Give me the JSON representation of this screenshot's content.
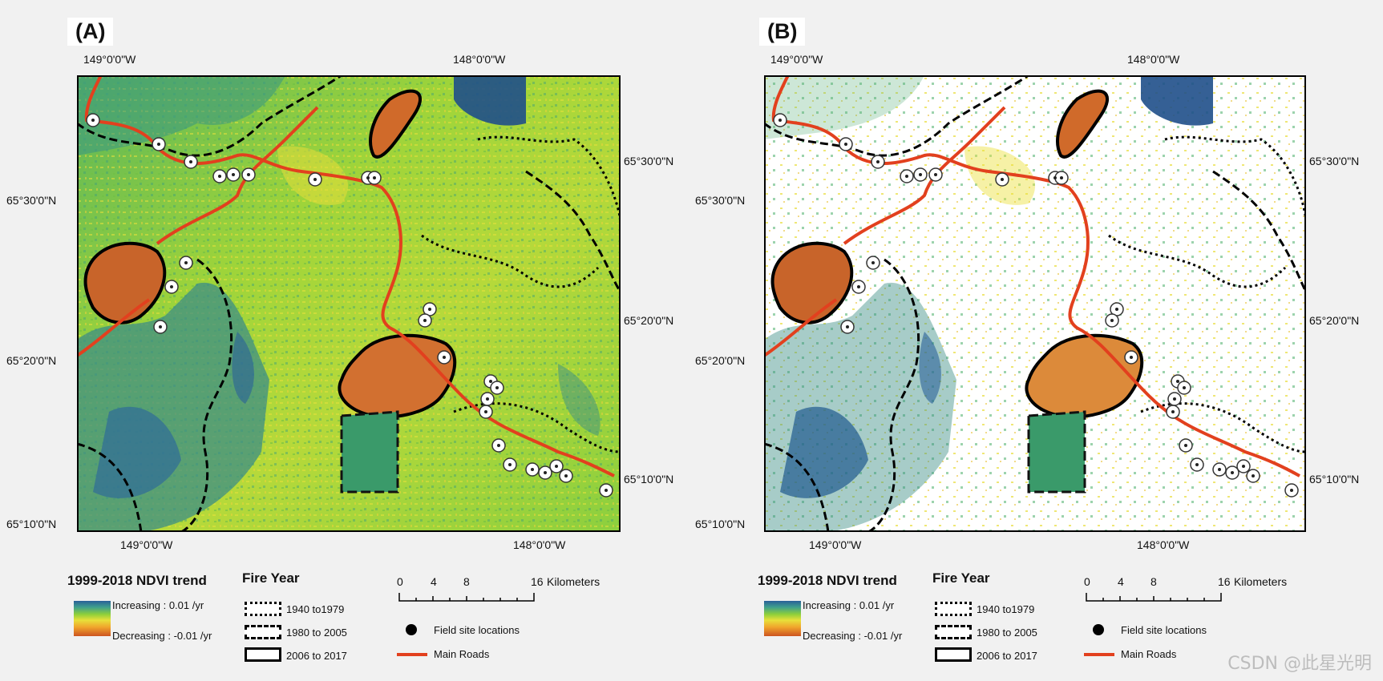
{
  "panels": [
    {
      "label": "(A)",
      "coords": {
        "top_left": "149°0'0\"W",
        "top_right": "148°0'0\"W",
        "bottom_left": "149°0'0\"W",
        "bottom_right": "148°0'0\"W",
        "left_upper": "65°30'0\"N",
        "left_middle": "65°20'0\"N",
        "left_lower": "65°10'0\"N",
        "right_upper": "65°30'0\"N",
        "right_middle": "65°20'0\"N",
        "right_lower": "65°10'0\"N"
      },
      "style": "full-ndvi"
    },
    {
      "label": "(B)",
      "coords": {
        "top_left": "149°0'0\"W",
        "top_right": "148°0'0\"W",
        "bottom_left": "149°0'0\"W",
        "bottom_right": "148°0'0\"W",
        "left_upper": "65°30'0\"N",
        "left_middle": "65°20'0\"N",
        "left_lower": "65°10'0\"N",
        "right_upper": "65°30'0\"N",
        "right_middle": "65°20'0\"N",
        "right_lower": "65°10'0\"N"
      },
      "style": "significant-only"
    }
  ],
  "legend": {
    "ndvi_title": "1999-2018 NDVI trend",
    "increasing": "Increasing : 0.01 /yr",
    "decreasing": "Decreasing : -0.01 /yr",
    "fire_title": "Fire Year",
    "fire_classes": [
      "1940 to1979",
      "1980 to 2005",
      "2006 to 2017"
    ],
    "scale_ticks": [
      "0",
      "4",
      "8",
      "16"
    ],
    "scale_unit": "Kilometers",
    "field_sites": "Field site locations",
    "roads": "Main Roads"
  },
  "colors": {
    "road": "#e2401e",
    "increasing": "#2a6099",
    "stable": "#8ecf3a",
    "decreasing": "#cc5420"
  },
  "watermark": "CSDN @此星光明"
}
